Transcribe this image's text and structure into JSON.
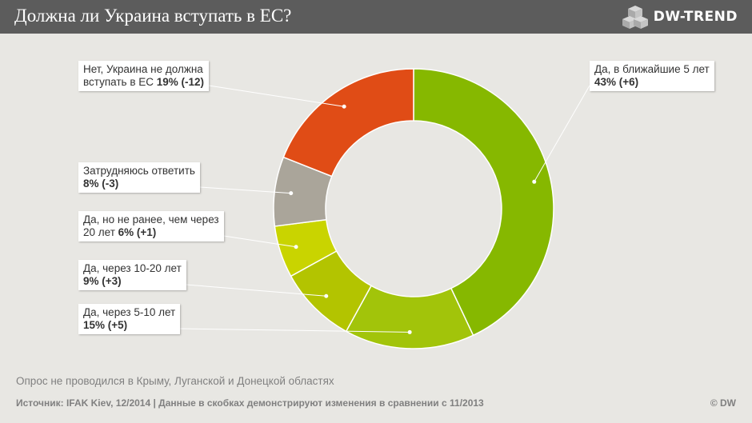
{
  "header": {
    "title": "Должна ли Украина вступать в ЕС?",
    "logo_text": "DW-TREND"
  },
  "chart_data": {
    "type": "pie",
    "title": "Должна ли Украина вступать в ЕС?",
    "donut": true,
    "categories": [
      "Да, в ближайшие 5 лет",
      "Да, через 5-10 лет",
      "Да, через 10-20 лет",
      "Да, но не ранее, чем через 20 лет",
      "Затрудняюсь ответить",
      "Нет, Украина не должна вступать в ЕС"
    ],
    "values": [
      43,
      15,
      9,
      6,
      8,
      19
    ],
    "changes": [
      "+6",
      "+5",
      "+3",
      "+1",
      "-3",
      "-12"
    ],
    "colors": [
      "#86b800",
      "#a2c40a",
      "#b3c400",
      "#c9d400",
      "#aaa59a",
      "#e04c16"
    ],
    "labels": [
      {
        "line1": "Да, в ближайшие 5 лет",
        "line2_prefix": "",
        "value_text": "43% (+6)"
      },
      {
        "line1": "Да, через 5-10 лет",
        "line2_prefix": "",
        "value_text": "15% (+5)"
      },
      {
        "line1": "Да, через 10-20 лет",
        "line2_prefix": "",
        "value_text": "9% (+3)"
      },
      {
        "line1": "Да, но не ранее, чем через",
        "line2_prefix": "20 лет ",
        "value_text": "6% (+1)"
      },
      {
        "line1": "Затрудняюсь ответить",
        "line2_prefix": "",
        "value_text": "8% (-3)"
      },
      {
        "line1": "Нет, Украина не должна",
        "line2_prefix": "вступать в ЕС ",
        "value_text": "19% (-12)"
      }
    ]
  },
  "footer": {
    "note": "Опрос не проводился в Крыму, Луганской и Донецкой областях",
    "source": "Источник: IFAK Kiev, 12/2014 | Данные в скобках демонстрируют изменения в сравнении с 11/2013",
    "copyright": "© DW"
  }
}
